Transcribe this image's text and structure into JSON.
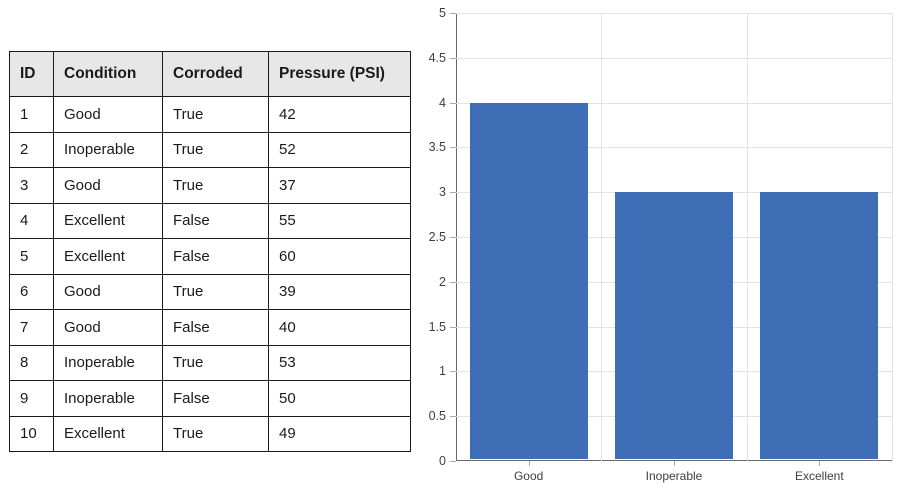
{
  "table": {
    "headers": [
      "ID",
      "Condition",
      "Corroded",
      "Pressure (PSI)"
    ],
    "rows": [
      [
        "1",
        "Good",
        "True",
        "42"
      ],
      [
        "2",
        "Inoperable",
        "True",
        "52"
      ],
      [
        "3",
        "Good",
        "True",
        "37"
      ],
      [
        "4",
        "Excellent",
        "False",
        "55"
      ],
      [
        "5",
        "Excellent",
        "False",
        "60"
      ],
      [
        "6",
        "Good",
        "True",
        "39"
      ],
      [
        "7",
        "Good",
        "False",
        "40"
      ],
      [
        "8",
        "Inoperable",
        "True",
        "53"
      ],
      [
        "9",
        "Inoperable",
        "False",
        "50"
      ],
      [
        "10",
        "Excellent",
        "True",
        "49"
      ]
    ],
    "header_bg": "#e7e7e7",
    "border_color": "#1a1a1a"
  },
  "chart_data": {
    "type": "bar",
    "categories": [
      "Good",
      "Inoperable",
      "Excellent"
    ],
    "values": [
      4,
      3,
      3
    ],
    "title": "",
    "xlabel": "",
    "ylabel": "",
    "ylim": [
      0,
      5
    ],
    "ytick_step": 0.5,
    "ytick_labels": [
      "0",
      "0.5",
      "1",
      "1.5",
      "2",
      "2.5",
      "3",
      "3.5",
      "4",
      "4.5",
      "5"
    ],
    "grid": true,
    "legend": false,
    "bar_color": "#3E6EB5",
    "gridline_color": "#e3e3e3",
    "axis_color": "#6a6a6a",
    "tick_color": "#ababab",
    "label_color": "#3f3f3f"
  }
}
